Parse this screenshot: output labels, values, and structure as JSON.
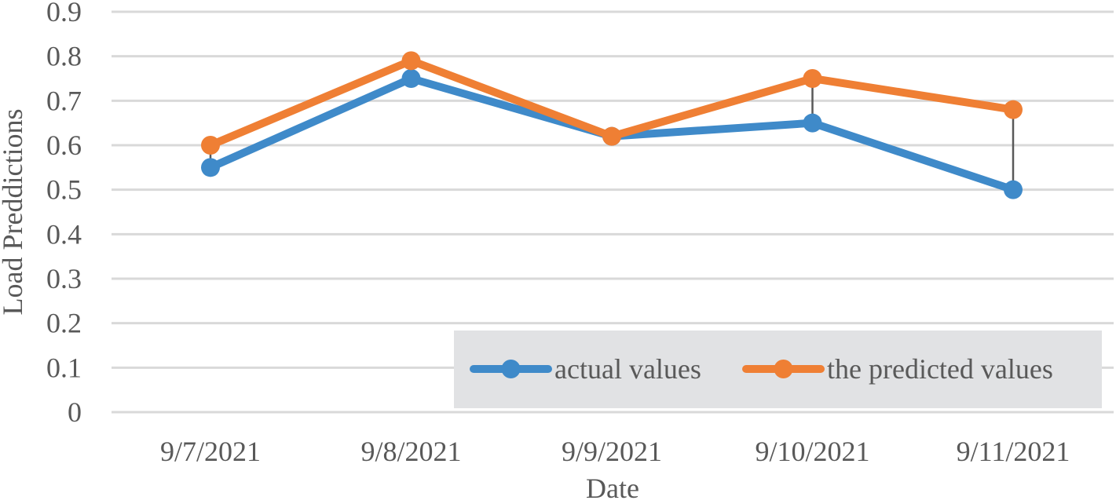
{
  "chart_data": {
    "type": "line",
    "title": "",
    "xlabel": "Date",
    "ylabel": "Load Preddictions",
    "categories": [
      "9/7/2021",
      "9/8/2021",
      "9/9/2021",
      "9/10/2021",
      "9/11/2021"
    ],
    "ylim": [
      0,
      0.9
    ],
    "yticks": [
      0,
      0.1,
      0.2,
      0.3,
      0.4,
      0.5,
      0.6,
      0.7,
      0.8,
      0.9
    ],
    "ytick_labels": [
      "0",
      "0.1",
      "0.2",
      "0.3",
      "0.4",
      "0.5",
      "0.6",
      "0.7",
      "0.8",
      "0.9"
    ],
    "grid": true,
    "high_low_lines": true,
    "legend_position": "bottom-right",
    "series": [
      {
        "name": "actual values",
        "color": "#3f8ac9",
        "values": [
          0.55,
          0.75,
          0.62,
          0.65,
          0.5
        ]
      },
      {
        "name": "the predicted values",
        "color": "#ef7f34",
        "values": [
          0.6,
          0.79,
          0.62,
          0.75,
          0.68
        ]
      }
    ],
    "colors": {
      "grid": "#d9d9d9",
      "text": "#595959",
      "legend_bg": "#e1e2e4",
      "high_low": "#595959"
    }
  }
}
